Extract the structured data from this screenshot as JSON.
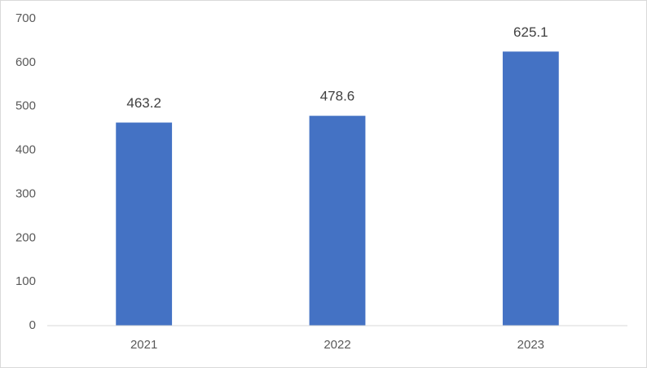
{
  "chart_data": {
    "type": "bar",
    "categories": [
      "2021",
      "2022",
      "2023"
    ],
    "values": [
      463.2,
      478.6,
      625.1
    ],
    "color": "#4472c4",
    "ylim": [
      0,
      700
    ],
    "yticks": [
      0,
      100,
      200,
      300,
      400,
      500,
      600,
      700
    ],
    "grid": false
  }
}
